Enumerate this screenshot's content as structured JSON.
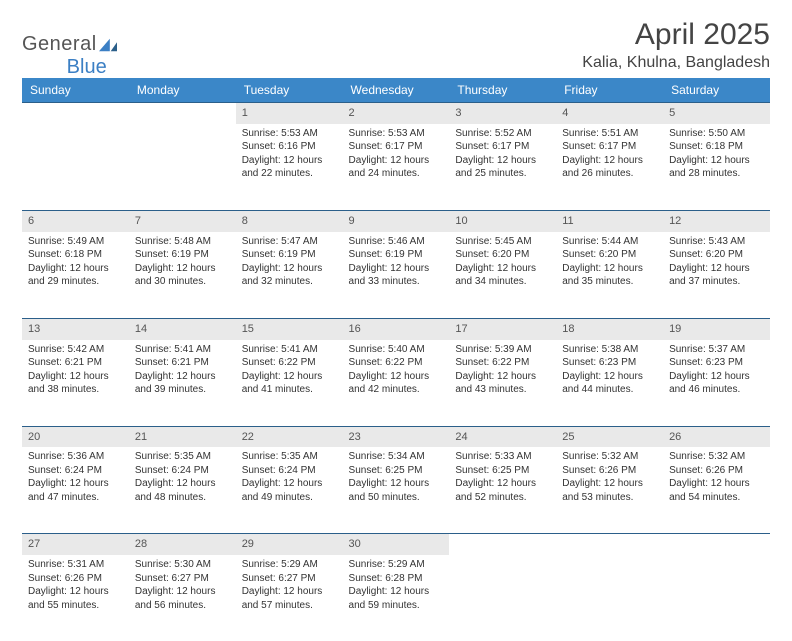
{
  "logo": {
    "word1": "General",
    "word2": "Blue"
  },
  "title": "April 2025",
  "location": "Kalia, Khulna, Bangladesh",
  "colors": {
    "header_bg": "#3b87c8",
    "header_text": "#ffffff",
    "daynum_bg": "#e9e9e9",
    "rule": "#2b5f8a",
    "logo_accent": "#3b7fc4",
    "text": "#333333",
    "page_bg": "#ffffff"
  },
  "weekdays": [
    "Sunday",
    "Monday",
    "Tuesday",
    "Wednesday",
    "Thursday",
    "Friday",
    "Saturday"
  ],
  "weeks": [
    [
      null,
      null,
      {
        "n": "1",
        "sunrise": "5:53 AM",
        "sunset": "6:16 PM",
        "day_h": "12",
        "day_m": "22"
      },
      {
        "n": "2",
        "sunrise": "5:53 AM",
        "sunset": "6:17 PM",
        "day_h": "12",
        "day_m": "24"
      },
      {
        "n": "3",
        "sunrise": "5:52 AM",
        "sunset": "6:17 PM",
        "day_h": "12",
        "day_m": "25"
      },
      {
        "n": "4",
        "sunrise": "5:51 AM",
        "sunset": "6:17 PM",
        "day_h": "12",
        "day_m": "26"
      },
      {
        "n": "5",
        "sunrise": "5:50 AM",
        "sunset": "6:18 PM",
        "day_h": "12",
        "day_m": "28"
      }
    ],
    [
      {
        "n": "6",
        "sunrise": "5:49 AM",
        "sunset": "6:18 PM",
        "day_h": "12",
        "day_m": "29"
      },
      {
        "n": "7",
        "sunrise": "5:48 AM",
        "sunset": "6:19 PM",
        "day_h": "12",
        "day_m": "30"
      },
      {
        "n": "8",
        "sunrise": "5:47 AM",
        "sunset": "6:19 PM",
        "day_h": "12",
        "day_m": "32"
      },
      {
        "n": "9",
        "sunrise": "5:46 AM",
        "sunset": "6:19 PM",
        "day_h": "12",
        "day_m": "33"
      },
      {
        "n": "10",
        "sunrise": "5:45 AM",
        "sunset": "6:20 PM",
        "day_h": "12",
        "day_m": "34"
      },
      {
        "n": "11",
        "sunrise": "5:44 AM",
        "sunset": "6:20 PM",
        "day_h": "12",
        "day_m": "35"
      },
      {
        "n": "12",
        "sunrise": "5:43 AM",
        "sunset": "6:20 PM",
        "day_h": "12",
        "day_m": "37"
      }
    ],
    [
      {
        "n": "13",
        "sunrise": "5:42 AM",
        "sunset": "6:21 PM",
        "day_h": "12",
        "day_m": "38"
      },
      {
        "n": "14",
        "sunrise": "5:41 AM",
        "sunset": "6:21 PM",
        "day_h": "12",
        "day_m": "39"
      },
      {
        "n": "15",
        "sunrise": "5:41 AM",
        "sunset": "6:22 PM",
        "day_h": "12",
        "day_m": "41"
      },
      {
        "n": "16",
        "sunrise": "5:40 AM",
        "sunset": "6:22 PM",
        "day_h": "12",
        "day_m": "42"
      },
      {
        "n": "17",
        "sunrise": "5:39 AM",
        "sunset": "6:22 PM",
        "day_h": "12",
        "day_m": "43"
      },
      {
        "n": "18",
        "sunrise": "5:38 AM",
        "sunset": "6:23 PM",
        "day_h": "12",
        "day_m": "44"
      },
      {
        "n": "19",
        "sunrise": "5:37 AM",
        "sunset": "6:23 PM",
        "day_h": "12",
        "day_m": "46"
      }
    ],
    [
      {
        "n": "20",
        "sunrise": "5:36 AM",
        "sunset": "6:24 PM",
        "day_h": "12",
        "day_m": "47"
      },
      {
        "n": "21",
        "sunrise": "5:35 AM",
        "sunset": "6:24 PM",
        "day_h": "12",
        "day_m": "48"
      },
      {
        "n": "22",
        "sunrise": "5:35 AM",
        "sunset": "6:24 PM",
        "day_h": "12",
        "day_m": "49"
      },
      {
        "n": "23",
        "sunrise": "5:34 AM",
        "sunset": "6:25 PM",
        "day_h": "12",
        "day_m": "50"
      },
      {
        "n": "24",
        "sunrise": "5:33 AM",
        "sunset": "6:25 PM",
        "day_h": "12",
        "day_m": "52"
      },
      {
        "n": "25",
        "sunrise": "5:32 AM",
        "sunset": "6:26 PM",
        "day_h": "12",
        "day_m": "53"
      },
      {
        "n": "26",
        "sunrise": "5:32 AM",
        "sunset": "6:26 PM",
        "day_h": "12",
        "day_m": "54"
      }
    ],
    [
      {
        "n": "27",
        "sunrise": "5:31 AM",
        "sunset": "6:26 PM",
        "day_h": "12",
        "day_m": "55"
      },
      {
        "n": "28",
        "sunrise": "5:30 AM",
        "sunset": "6:27 PM",
        "day_h": "12",
        "day_m": "56"
      },
      {
        "n": "29",
        "sunrise": "5:29 AM",
        "sunset": "6:27 PM",
        "day_h": "12",
        "day_m": "57"
      },
      {
        "n": "30",
        "sunrise": "5:29 AM",
        "sunset": "6:28 PM",
        "day_h": "12",
        "day_m": "59"
      },
      null,
      null,
      null
    ]
  ],
  "labels": {
    "sunrise": "Sunrise:",
    "sunset": "Sunset:",
    "daylight_prefix": "Daylight:",
    "hours_word": "hours",
    "and_word": "and",
    "minutes_word": "minutes."
  }
}
